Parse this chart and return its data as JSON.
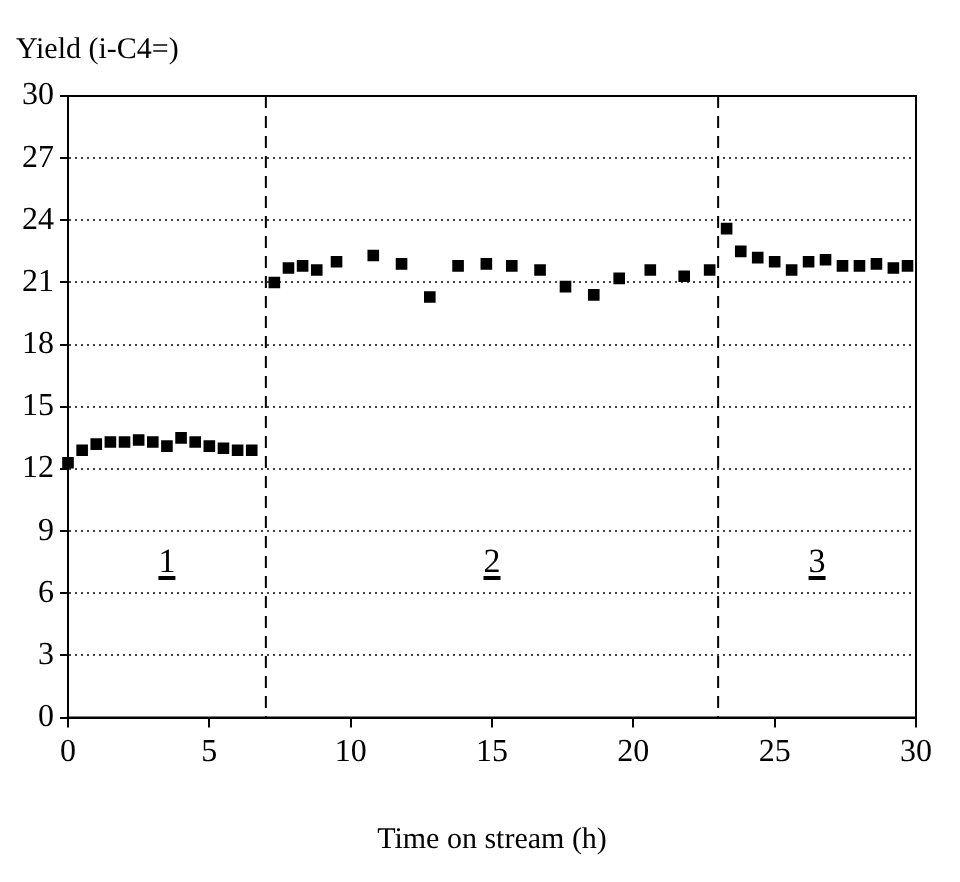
{
  "chart_data": {
    "type": "scatter",
    "ylabel": "Yield (i-C4=)",
    "xlabel": "Time on stream (h)",
    "marker": "square",
    "grid": "y",
    "xlim": [
      0,
      30
    ],
    "xticks": [
      0,
      5,
      10,
      15,
      20,
      25,
      30
    ],
    "ylim": [
      0,
      30
    ],
    "yticks": [
      0,
      3,
      6,
      9,
      12,
      15,
      18,
      21,
      24,
      27,
      30
    ],
    "series": [
      {
        "color": "#000000",
        "x": [
          0,
          0.5,
          1.0,
          1.5,
          2.0,
          2.5,
          3.0,
          3.5,
          4.0,
          4.5,
          5.0,
          5.5,
          6.0,
          6.5,
          7.3,
          7.8,
          8.3,
          8.8,
          9.5,
          10.8,
          11.8,
          12.8,
          13.8,
          14.8,
          15.7,
          16.7,
          17.6,
          18.6,
          19.5,
          20.6,
          21.8,
          22.7,
          23.3,
          23.8,
          24.4,
          25.0,
          25.6,
          26.2,
          26.8,
          27.4,
          28.0,
          28.6,
          29.2,
          29.7
        ],
        "values": [
          12.3,
          12.9,
          13.2,
          13.3,
          13.3,
          13.4,
          13.3,
          13.1,
          13.5,
          13.3,
          13.1,
          13.0,
          12.9,
          12.9,
          21.0,
          21.7,
          21.8,
          21.6,
          22.0,
          22.3,
          21.9,
          20.3,
          21.8,
          21.9,
          21.8,
          21.6,
          20.8,
          20.4,
          21.2,
          21.6,
          21.3,
          21.6,
          23.6,
          22.5,
          22.2,
          22.0,
          21.6,
          22.0,
          22.1,
          21.8,
          21.8,
          21.9,
          21.7,
          21.8
        ]
      }
    ],
    "ref_lines": [
      {
        "axis": "x",
        "value": 7,
        "line_style": "dashed"
      },
      {
        "axis": "x",
        "value": 23,
        "line_style": "dashed"
      }
    ],
    "annotations": [
      "1",
      "2",
      "3"
    ]
  }
}
